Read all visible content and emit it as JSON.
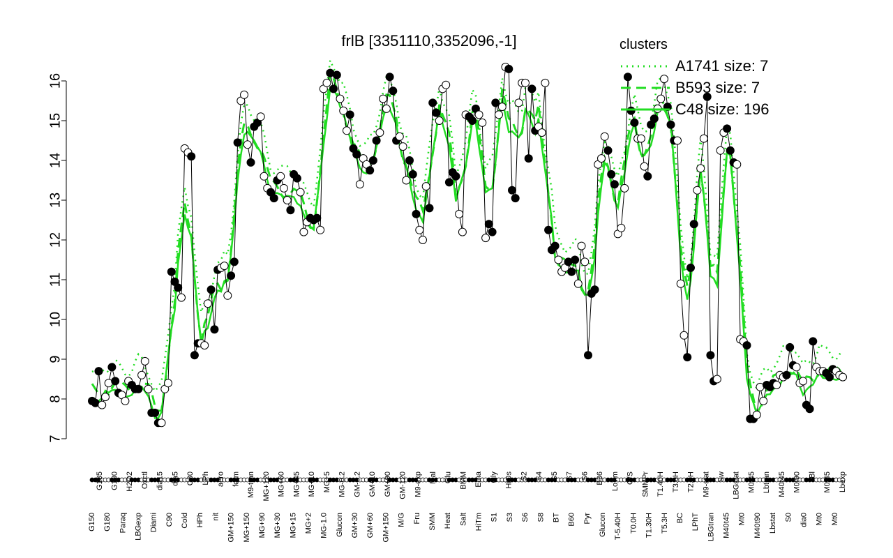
{
  "chart_data": {
    "type": "line",
    "title": "frlB [3351110,3352096,-1]",
    "xlabel": "",
    "ylabel": "",
    "ylim": [
      7,
      16
    ],
    "yticks": [
      7,
      8,
      9,
      10,
      11,
      12,
      13,
      14,
      15,
      16
    ],
    "legend_title": "clusters",
    "legend_placement": "top-right",
    "legend": [
      {
        "label": "A1741 size: 7",
        "style": "dotted"
      },
      {
        "label": "B593 size: 7",
        "style": "dashed"
      },
      {
        "label": "C48 size: 196",
        "style": "solid"
      }
    ],
    "colors": {
      "cluster_line": "#22dd22",
      "points": "#000000"
    },
    "x_tick_labels_upper": [
      "G135",
      "G180",
      "H2O2",
      "Oxctl",
      "dia15",
      "dia5",
      "C30",
      "LPh",
      "aero",
      "ferm",
      "M9-tran",
      "MG+120",
      "MG+60",
      "MG+45",
      "MG+10",
      "MG+5",
      "MG-0.2",
      "GM-0.2",
      "GM+10",
      "GM+90",
      "GM-120",
      "M9-exp",
      "Mal",
      "Glu",
      "BMM",
      "Etha",
      "Gly",
      "HiOs",
      "S2",
      "S4",
      "S5",
      "S7",
      "S6",
      "B36",
      "LoTm",
      "G/S",
      "SMMPr",
      "T1.40H",
      "T3.0H",
      "T2.0H",
      "M9-stat",
      "Sw",
      "LBGstat",
      "M0t45",
      "Lbtran",
      "M40t45",
      "M0t90",
      "Bl",
      "M0t45",
      "Lbexp"
    ],
    "x_tick_labels_lower": [
      "G150",
      "G180",
      "Paraq",
      "LBGexp",
      "Diami",
      "C90",
      "Cold",
      "HPh",
      "nit",
      "GM+150",
      "MG+150",
      "MG+90",
      "MG+30",
      "MG+15",
      "MG+2",
      "MG-1.0",
      "Glucon",
      "GM+30",
      "GM+60",
      "GM+150",
      "M/G",
      "Fru",
      "SMM",
      "Heat",
      "Salt",
      "HiTm",
      "S1",
      "S3",
      "S6",
      "S8",
      "BT",
      "B60",
      "Pyr",
      "Glucon",
      "T-5.40H",
      "T0.0H",
      "T1.30H",
      "T5.3H",
      "BC",
      "LPhT",
      "LBGtran",
      "M40t45",
      "Mt0",
      "M40t90",
      "Lbstat",
      "S0",
      "dia0",
      "Mt0",
      "Mt0"
    ],
    "series": [
      {
        "name": "",
        "values": [
          7.95,
          7.9,
          8.7,
          7.85,
          8.05,
          8.4,
          8.8,
          8.45,
          8.15,
          8.1,
          7.95,
          8.45,
          8.35,
          8.25,
          8.25,
          8.6,
          8.95,
          8.25,
          7.65,
          7.65,
          7.4,
          7.4,
          8.25,
          8.4,
          11.2,
          10.95,
          10.8,
          10.55,
          14.3,
          14.2,
          14.1,
          9.1,
          9.4,
          9.4,
          9.35,
          10.4,
          10.75,
          9.75,
          11.25,
          11.3,
          11.35,
          10.6,
          11.1,
          11.45,
          14.45,
          15.5,
          15.65,
          14.4,
          13.95,
          14.85,
          14.95,
          15.1,
          13.6,
          13.3,
          13.2,
          13.05,
          13.5,
          13.6,
          13.3,
          13.0,
          12.75,
          13.65,
          13.55,
          13.2,
          12.2,
          12.45,
          12.55,
          12.5,
          12.55,
          12.25,
          15.8,
          15.95,
          16.2,
          15.8,
          16.15,
          15.55,
          15.25,
          14.75,
          15.15,
          14.3,
          14.15,
          13.4,
          14.05,
          13.9,
          13.75,
          14.0,
          14.5,
          14.7,
          15.55,
          15.3,
          16.1,
          15.75,
          14.5,
          14.6,
          14.35,
          13.5,
          14.0,
          13.65,
          12.65,
          12.25,
          12.0,
          13.35,
          12.8,
          15.45,
          15.2,
          15.0,
          15.8,
          15.9,
          13.45,
          13.7,
          13.6,
          12.65,
          12.2,
          15.15,
          15.1,
          15.0,
          15.3,
          15.15,
          14.95,
          12.05,
          12.4,
          12.2,
          15.45,
          15.15,
          15.35,
          16.35,
          16.3,
          13.25,
          13.05,
          15.45,
          15.95,
          15.95,
          14.05,
          15.8,
          14.75,
          14.85,
          14.7,
          15.95,
          12.25,
          11.75,
          11.85,
          11.5,
          11.2,
          11.3,
          11.45,
          11.2,
          11.5,
          10.9,
          11.85,
          11.45,
          9.1,
          10.65,
          10.75,
          13.9,
          14.05,
          14.6,
          14.25,
          13.65,
          13.4,
          12.15,
          12.3,
          13.3,
          16.1,
          15.25,
          14.95,
          14.55,
          14.55,
          13.85,
          13.6,
          14.9,
          15.05,
          15.3,
          15.55,
          16.05,
          15.35,
          14.9,
          14.5,
          14.5,
          10.9,
          9.6,
          9.05,
          11.3,
          12.4,
          13.25,
          13.8,
          14.55,
          15.6,
          9.1,
          8.45,
          8.5,
          14.25,
          14.7,
          14.8,
          14.25,
          13.95,
          13.9,
          9.5,
          9.45,
          9.35,
          7.5,
          7.5,
          7.6,
          8.3,
          7.95,
          8.35,
          8.3,
          8.4,
          8.35,
          8.6,
          8.55,
          8.6,
          9.3,
          8.85,
          8.8,
          8.4,
          8.45,
          7.85,
          7.75,
          9.45,
          8.8,
          8.7,
          8.7,
          8.65,
          8.55,
          8.75,
          8.7,
          8.6,
          8.55
        ]
      }
    ]
  }
}
